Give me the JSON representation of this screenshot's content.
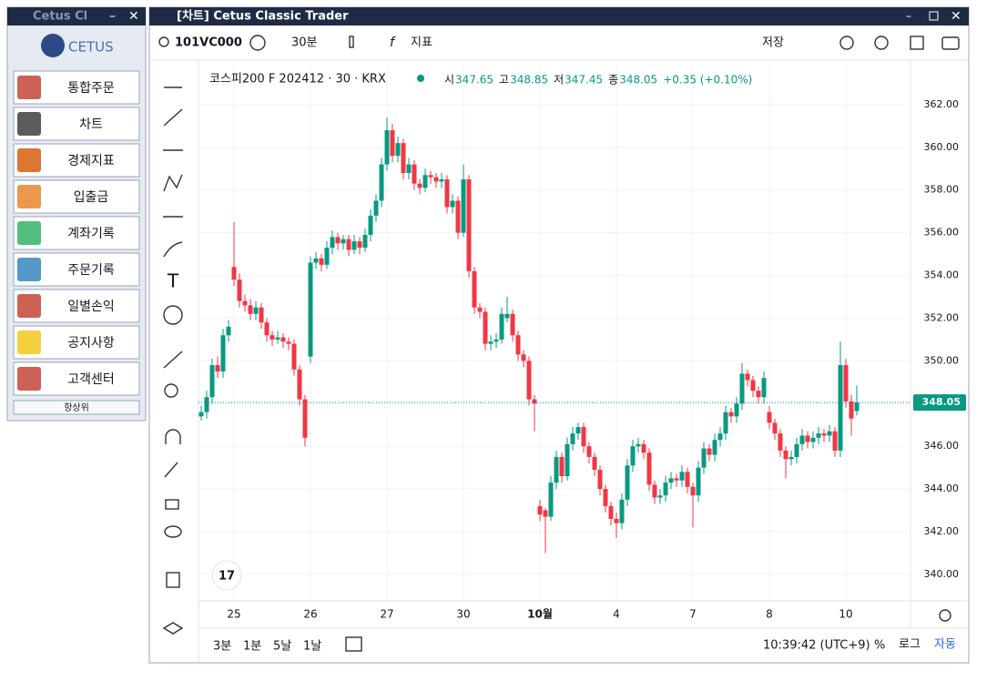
{
  "side_window": {
    "title": "Cetus Cl",
    "logo": "CETUS",
    "items": [
      "통합주문",
      "차트",
      "경제지표",
      "입출금",
      "계좌기록",
      "주문기록",
      "일별손익",
      "공지사항",
      "고객센터"
    ],
    "footer": "항상위"
  },
  "window": {
    "title": "[차트] Cetus Classic Trader"
  },
  "toolbar": {
    "symbol": "101VC000",
    "interval": "30분",
    "indicator": "지표",
    "save": "저장"
  },
  "legend": {
    "name": "코스피200 F 202412 · 30 · KRX",
    "open_label": "시",
    "high_label": "고",
    "low_label": "저",
    "close_label": "종",
    "change": "+0.35 (+0.10%)"
  },
  "bottom_bar": {
    "ranges": [
      "3분",
      "1분",
      "5날",
      "1날"
    ],
    "clock": "10:39:42 (UTC+9)",
    "percent": "%",
    "log": "로그",
    "auto": "자동"
  },
  "chart_data": {
    "type": "candlestick",
    "up_color": "#089981",
    "down_color": "#f23645",
    "grid": true,
    "ylim": [
      338.76,
      363.83
    ],
    "yticks": [
      {
        "value": 340,
        "label": "340.00"
      },
      {
        "value": 342,
        "label": "342.00"
      },
      {
        "value": 344,
        "label": "344.00"
      },
      {
        "value": 346,
        "label": "346.00"
      },
      {
        "value": 348,
        "label": "348.00"
      },
      {
        "value": 350,
        "label": "350.00"
      },
      {
        "value": 352,
        "label": "352.00"
      },
      {
        "value": 354,
        "label": "354.00"
      },
      {
        "value": 356,
        "label": "356.00"
      },
      {
        "value": 358,
        "label": "358.00"
      },
      {
        "value": 360,
        "label": "360.00"
      },
      {
        "value": 362,
        "label": "362.00"
      }
    ],
    "categories": [
      null,
      null,
      null,
      null,
      null,
      null,
      "25",
      null,
      null,
      null,
      null,
      null,
      null,
      null,
      null,
      null,
      null,
      null,
      null,
      null,
      "26",
      null,
      null,
      null,
      null,
      null,
      null,
      null,
      null,
      null,
      null,
      null,
      null,
      null,
      "27",
      null,
      null,
      null,
      null,
      null,
      null,
      null,
      null,
      null,
      null,
      null,
      null,
      null,
      "30",
      null,
      null,
      null,
      null,
      null,
      null,
      null,
      null,
      null,
      null,
      null,
      null,
      null,
      "10월",
      null,
      null,
      null,
      null,
      null,
      null,
      null,
      null,
      null,
      null,
      null,
      null,
      null,
      "4",
      null,
      null,
      null,
      null,
      null,
      null,
      null,
      null,
      null,
      null,
      null,
      null,
      null,
      "7",
      null,
      null,
      null,
      null,
      null,
      null,
      null,
      null,
      null,
      null,
      null,
      null,
      null,
      "8",
      null,
      null,
      null,
      null,
      null,
      null,
      null,
      null,
      null,
      null,
      null,
      null,
      null,
      "10",
      null,
      null
    ],
    "ohlc": [
      [
        347.4,
        347.9,
        347.2,
        347.6
      ],
      [
        347.6,
        348.6,
        347.3,
        348.3
      ],
      [
        348.3,
        350.1,
        348.0,
        349.8
      ],
      [
        349.8,
        350.2,
        349.2,
        349.5
      ],
      [
        349.5,
        351.5,
        349.2,
        351.2
      ],
      [
        351.2,
        351.9,
        350.9,
        351.6
      ],
      [
        354.4,
        356.5,
        353.5,
        353.8
      ],
      [
        353.8,
        354.1,
        352.5,
        352.8
      ],
      [
        352.8,
        353.1,
        352.3,
        352.6
      ],
      [
        352.6,
        352.9,
        351.9,
        352.2
      ],
      [
        352.2,
        352.8,
        351.9,
        352.5
      ],
      [
        352.5,
        352.7,
        351.5,
        351.8
      ],
      [
        351.8,
        352.0,
        350.9,
        351.2
      ],
      [
        351.2,
        351.4,
        350.7,
        351.0
      ],
      [
        351.0,
        351.4,
        350.8,
        351.1
      ],
      [
        351.1,
        351.3,
        350.6,
        350.9
      ],
      [
        350.9,
        351.1,
        350.5,
        350.8
      ],
      [
        350.8,
        351.0,
        349.3,
        349.6
      ],
      [
        349.6,
        349.8,
        347.9,
        348.2
      ],
      [
        348.2,
        348.4,
        346.0,
        346.4
      ],
      [
        350.2,
        354.9,
        349.9,
        354.6
      ],
      [
        354.6,
        355.1,
        354.3,
        354.8
      ],
      [
        354.8,
        355.0,
        354.2,
        354.5
      ],
      [
        354.5,
        355.6,
        354.3,
        355.3
      ],
      [
        355.3,
        356.1,
        355.0,
        355.8
      ],
      [
        355.8,
        356.0,
        355.2,
        355.5
      ],
      [
        355.5,
        355.9,
        355.2,
        355.7
      ],
      [
        355.7,
        355.9,
        354.9,
        355.2
      ],
      [
        355.2,
        355.9,
        355.0,
        355.6
      ],
      [
        355.6,
        355.8,
        355.0,
        355.3
      ],
      [
        355.3,
        356.2,
        355.1,
        355.9
      ],
      [
        355.9,
        357.1,
        355.6,
        356.8
      ],
      [
        356.8,
        357.8,
        356.5,
        357.5
      ],
      [
        357.5,
        359.5,
        357.2,
        359.2
      ],
      [
        359.2,
        361.4,
        358.9,
        360.8
      ],
      [
        360.8,
        361.1,
        359.3,
        359.6
      ],
      [
        359.6,
        360.5,
        359.3,
        360.2
      ],
      [
        360.2,
        360.4,
        358.5,
        358.8
      ],
      [
        358.8,
        359.5,
        358.5,
        359.2
      ],
      [
        359.2,
        359.4,
        358.0,
        358.3
      ],
      [
        358.3,
        358.5,
        357.8,
        358.1
      ],
      [
        358.1,
        359.0,
        357.9,
        358.7
      ],
      [
        358.7,
        358.9,
        358.3,
        358.6
      ],
      [
        358.6,
        358.8,
        358.1,
        358.4
      ],
      [
        358.4,
        358.8,
        358.1,
        358.5
      ],
      [
        358.5,
        358.7,
        356.9,
        357.2
      ],
      [
        357.2,
        357.8,
        356.9,
        357.5
      ],
      [
        357.5,
        357.7,
        355.7,
        356.0
      ],
      [
        356.0,
        359.2,
        355.8,
        358.5
      ],
      [
        358.5,
        358.7,
        353.9,
        354.2
      ],
      [
        354.2,
        354.4,
        352.2,
        352.5
      ],
      [
        352.5,
        352.7,
        352.0,
        352.3
      ],
      [
        352.3,
        352.5,
        350.5,
        350.8
      ],
      [
        350.8,
        351.2,
        350.5,
        350.9
      ],
      [
        350.9,
        351.3,
        350.6,
        351.0
      ],
      [
        351.0,
        352.5,
        350.8,
        352.2
      ],
      [
        352.0,
        353.0,
        351.8,
        352.2
      ],
      [
        352.2,
        352.4,
        350.9,
        351.2
      ],
      [
        351.2,
        351.4,
        350.0,
        350.3
      ],
      [
        350.3,
        350.5,
        349.7,
        350.0
      ],
      [
        350.0,
        350.2,
        347.9,
        348.2
      ],
      [
        348.2,
        348.4,
        346.7,
        348.0
      ],
      [
        343.2,
        343.5,
        342.5,
        342.8
      ],
      [
        343.0,
        343.1,
        341.0,
        342.7
      ],
      [
        342.7,
        344.6,
        342.5,
        344.3
      ],
      [
        344.3,
        345.8,
        344.0,
        345.5
      ],
      [
        345.5,
        345.7,
        344.3,
        344.6
      ],
      [
        344.6,
        346.4,
        344.4,
        346.1
      ],
      [
        346.1,
        346.9,
        345.8,
        346.6
      ],
      [
        346.6,
        347.1,
        346.3,
        346.9
      ],
      [
        346.9,
        347.1,
        345.7,
        346.0
      ],
      [
        346.0,
        346.2,
        345.2,
        345.5
      ],
      [
        345.5,
        345.7,
        344.6,
        344.9
      ],
      [
        344.9,
        345.1,
        343.7,
        344.0
      ],
      [
        344.0,
        344.2,
        342.9,
        343.2
      ],
      [
        343.2,
        343.4,
        342.3,
        342.6
      ],
      [
        342.6,
        342.9,
        341.7,
        342.4
      ],
      [
        342.4,
        343.8,
        342.1,
        343.5
      ],
      [
        343.5,
        345.4,
        343.2,
        345.1
      ],
      [
        345.1,
        346.3,
        344.8,
        346.0
      ],
      [
        346.0,
        346.4,
        345.7,
        346.1
      ],
      [
        346.1,
        346.3,
        345.4,
        345.7
      ],
      [
        345.7,
        345.9,
        343.9,
        344.2
      ],
      [
        344.2,
        344.4,
        343.3,
        343.6
      ],
      [
        343.6,
        344.0,
        343.3,
        343.7
      ],
      [
        343.7,
        344.6,
        343.4,
        344.3
      ],
      [
        344.3,
        344.8,
        344.0,
        344.5
      ],
      [
        344.5,
        344.7,
        344.1,
        344.4
      ],
      [
        344.4,
        345.1,
        344.1,
        344.8
      ],
      [
        344.8,
        345.0,
        343.8,
        344.1
      ],
      [
        344.1,
        344.3,
        342.2,
        343.7
      ],
      [
        343.7,
        345.3,
        343.4,
        345.0
      ],
      [
        345.0,
        346.2,
        344.7,
        345.9
      ],
      [
        345.9,
        346.1,
        345.3,
        345.6
      ],
      [
        345.6,
        346.6,
        345.3,
        346.3
      ],
      [
        346.3,
        346.9,
        346.0,
        346.6
      ],
      [
        346.6,
        347.9,
        346.3,
        347.6
      ],
      [
        347.6,
        347.8,
        347.1,
        347.4
      ],
      [
        347.4,
        348.3,
        347.1,
        348.0
      ],
      [
        348.0,
        349.9,
        347.7,
        349.4
      ],
      [
        349.4,
        349.6,
        348.8,
        349.1
      ],
      [
        349.1,
        349.3,
        348.3,
        348.6
      ],
      [
        348.6,
        348.8,
        348.0,
        348.3
      ],
      [
        348.3,
        349.5,
        348.0,
        349.2
      ],
      [
        347.6,
        347.9,
        346.8,
        347.1
      ],
      [
        347.1,
        347.3,
        346.3,
        346.6
      ],
      [
        346.6,
        346.8,
        345.5,
        345.8
      ],
      [
        345.8,
        346.0,
        344.5,
        345.4
      ],
      [
        345.4,
        345.8,
        345.1,
        345.5
      ],
      [
        345.5,
        346.4,
        345.2,
        346.1
      ],
      [
        346.1,
        346.8,
        345.8,
        346.5
      ],
      [
        346.5,
        346.7,
        345.9,
        346.2
      ],
      [
        346.2,
        346.7,
        345.9,
        346.4
      ],
      [
        346.4,
        346.9,
        346.1,
        346.6
      ],
      [
        346.6,
        346.8,
        346.2,
        346.5
      ],
      [
        346.5,
        347.0,
        346.2,
        346.7
      ],
      [
        346.7,
        346.9,
        345.5,
        345.8
      ],
      [
        345.8,
        350.9,
        345.5,
        349.8
      ],
      [
        349.8,
        350.1,
        347.8,
        348.1
      ],
      [
        348.1,
        348.4,
        346.5,
        347.3
      ],
      [
        347.65,
        348.85,
        347.45,
        348.05
      ]
    ]
  }
}
